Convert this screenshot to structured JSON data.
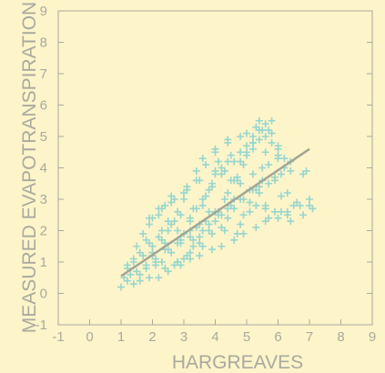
{
  "chart_data": {
    "type": "scatter",
    "title": "",
    "xlabel": "HARGREAVES",
    "ylabel": "MEASURED EVAPOTRANSPIRATION",
    "xlim": [
      -1,
      9
    ],
    "ylim": [
      -1,
      9
    ],
    "xticks": [
      -1,
      0,
      1,
      2,
      3,
      4,
      5,
      6,
      7,
      8,
      9
    ],
    "yticks": [
      -1,
      0,
      1,
      2,
      3,
      4,
      5,
      6,
      7,
      8,
      9
    ],
    "grid": false,
    "legend": "none",
    "colors": {
      "background": "#fdf4c9",
      "axes": "#a9a9a0",
      "points": "#96d6ce",
      "trendline": "#a3a595"
    },
    "series": [
      {
        "marker": "+",
        "x": [
          1.0,
          1.1,
          1.2,
          1.2,
          1.3,
          1.4,
          1.4,
          1.5,
          1.5,
          1.6,
          1.7,
          1.8,
          1.9,
          1.9,
          2.0,
          2.1,
          2.2,
          2.3,
          2.4,
          1.2,
          1.4,
          1.6,
          1.7,
          1.8,
          1.9,
          2.0,
          2.1,
          2.2,
          2.3,
          2.4,
          2.5,
          2.6,
          2.7,
          2.8,
          2.9,
          1.6,
          1.8,
          2.0,
          2.1,
          2.3,
          2.4,
          2.5,
          2.6,
          2.7,
          2.8,
          2.9,
          3.0,
          3.1,
          3.2,
          3.3,
          2.0,
          2.2,
          2.4,
          2.5,
          2.6,
          2.8,
          2.9,
          3.0,
          3.1,
          3.2,
          3.3,
          3.4,
          3.5,
          3.6,
          3.7,
          2.4,
          2.6,
          2.8,
          3.0,
          3.1,
          3.2,
          3.3,
          3.4,
          3.5,
          3.6,
          3.7,
          3.8,
          3.9,
          4.0,
          4.1,
          2.8,
          3.0,
          3.2,
          3.4,
          3.5,
          3.6,
          3.7,
          3.8,
          3.9,
          4.0,
          4.1,
          4.2,
          4.3,
          4.4,
          4.5,
          3.2,
          3.4,
          3.6,
          3.8,
          3.9,
          4.0,
          4.1,
          4.2,
          4.3,
          4.4,
          4.5,
          4.6,
          4.7,
          4.8,
          4.9,
          3.6,
          3.8,
          4.0,
          4.2,
          4.3,
          4.4,
          4.5,
          4.6,
          4.7,
          4.8,
          4.9,
          5.0,
          5.1,
          5.2,
          5.3,
          4.0,
          4.2,
          4.4,
          4.6,
          4.7,
          4.8,
          4.9,
          5.0,
          5.1,
          5.2,
          5.3,
          5.4,
          5.5,
          5.6,
          5.7,
          4.4,
          4.6,
          4.8,
          5.0,
          5.1,
          5.2,
          5.3,
          5.4,
          5.5,
          5.6,
          5.7,
          5.8,
          5.9,
          6.0,
          6.1,
          4.8,
          5.0,
          5.2,
          5.4,
          5.5,
          5.6,
          5.7,
          5.8,
          5.9,
          6.0,
          6.1,
          6.2,
          6.3,
          6.4,
          6.5,
          5.2,
          5.4,
          5.6,
          5.8,
          5.9,
          6.0,
          6.1,
          6.2,
          6.3,
          6.4,
          6.6,
          6.8,
          7.0,
          7.1,
          6.9,
          2.2,
          2.5,
          2.9,
          3.2,
          3.5,
          3.9,
          4.2,
          4.6,
          4.9,
          5.3,
          5.6,
          6.0,
          6.3,
          6.7,
          7.0,
          1.9,
          2.3,
          2.7,
          3.1,
          3.5,
          4.0,
          4.4,
          4.8,
          5.2,
          5.6,
          6.0,
          6.4,
          6.8,
          5.4,
          5.7
        ],
        "y": [
          0.2,
          0.5,
          0.4,
          0.9,
          0.6,
          0.3,
          1.1,
          0.7,
          1.5,
          0.4,
          1.2,
          0.8,
          1.6,
          0.5,
          1.3,
          0.9,
          1.8,
          1.0,
          1.4,
          0.8,
          1.0,
          1.3,
          1.9,
          0.9,
          2.2,
          1.5,
          1.1,
          2.5,
          1.7,
          0.8,
          2.0,
          1.3,
          2.3,
          1.0,
          1.6,
          0.6,
          1.7,
          2.4,
          1.0,
          2.0,
          2.8,
          1.4,
          2.2,
          0.9,
          2.6,
          1.7,
          3.0,
          1.2,
          2.0,
          1.5,
          1.2,
          2.7,
          1.6,
          2.3,
          3.1,
          1.0,
          2.5,
          1.9,
          3.3,
          1.3,
          2.7,
          2.1,
          1.6,
          3.0,
          2.3,
          1.4,
          2.9,
          2.0,
          1.1,
          3.4,
          2.4,
          1.7,
          3.6,
          2.2,
          1.5,
          3.1,
          2.6,
          1.9,
          3.8,
          2.5,
          1.6,
          3.2,
          2.3,
          3.9,
          1.8,
          2.8,
          4.1,
          2.0,
          3.4,
          2.6,
          4.2,
          2.1,
          3.0,
          2.4,
          3.6,
          1.8,
          2.7,
          4.3,
          2.2,
          3.5,
          4.5,
          2.6,
          3.8,
          2.0,
          3.2,
          4.4,
          2.7,
          3.6,
          2.2,
          4.1,
          2.0,
          3.3,
          4.6,
          2.5,
          3.9,
          4.8,
          2.8,
          3.6,
          1.9,
          4.2,
          3.0,
          4.7,
          2.6,
          3.8,
          3.3,
          2.3,
          4.0,
          4.9,
          3.0,
          3.7,
          5.0,
          2.5,
          4.4,
          3.3,
          4.8,
          2.8,
          5.2,
          3.6,
          4.5,
          2.4,
          2.7,
          4.2,
          3.5,
          5.1,
          2.9,
          4.6,
          5.3,
          3.2,
          4.0,
          5.4,
          3.5,
          4.8,
          2.6,
          4.3,
          3.8,
          3.0,
          4.5,
          5.0,
          3.4,
          5.2,
          2.7,
          4.1,
          5.5,
          3.6,
          4.7,
          3.1,
          4.3,
          2.5,
          3.9,
          2.8,
          3.3,
          4.9,
          2.8,
          5.1,
          3.7,
          4.4,
          2.6,
          4.0,
          3.2,
          2.3,
          2.9,
          2.5,
          2.8,
          2.7,
          3.9,
          0.5,
          0.7,
          0.9,
          1.1,
          1.2,
          1.4,
          1.5,
          1.7,
          1.9,
          2.1,
          2.3,
          2.4,
          2.6,
          2.8,
          3.0,
          2.4,
          2.7,
          3.0,
          3.3,
          3.6,
          3.9,
          4.2,
          4.5,
          4.8,
          5.0,
          4.6,
          4.2,
          3.8,
          5.5,
          5.2
        ]
      }
    ],
    "trendline": {
      "x": [
        1.0,
        7.0
      ],
      "y": [
        0.55,
        4.6
      ]
    }
  }
}
